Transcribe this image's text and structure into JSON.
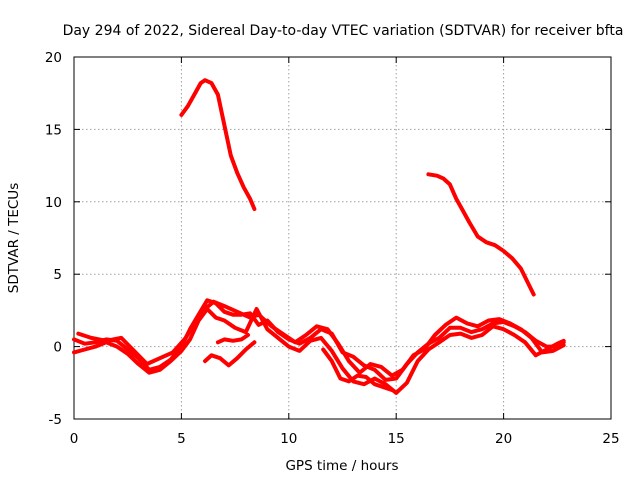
{
  "chart_data": {
    "type": "line",
    "title": "Day 294 of 2022, Sidereal Day-to-day VTEC variation (SDTVAR) for receiver bfta",
    "xlabel": "GPS time / hours",
    "ylabel": "SDTVAR / TECUs",
    "xlim": [
      0,
      25
    ],
    "ylim": [
      -5,
      20
    ],
    "xticks": [
      0,
      5,
      10,
      15,
      20,
      25
    ],
    "yticks": [
      -5,
      0,
      5,
      10,
      15,
      20
    ],
    "grid": true,
    "color": "#ff0000",
    "series": [
      {
        "name": "trace-1",
        "points": [
          [
            5.0,
            16.0
          ],
          [
            5.3,
            16.6
          ],
          [
            5.6,
            17.4
          ],
          [
            5.9,
            18.2
          ],
          [
            6.1,
            18.4
          ],
          [
            6.4,
            18.2
          ],
          [
            6.7,
            17.4
          ],
          [
            6.9,
            16.0
          ],
          [
            7.1,
            14.6
          ],
          [
            7.3,
            13.2
          ],
          [
            7.6,
            12.0
          ],
          [
            7.9,
            11.0
          ],
          [
            8.2,
            10.2
          ],
          [
            8.4,
            9.5
          ]
        ]
      },
      {
        "name": "trace-2",
        "points": [
          [
            16.5,
            11.9
          ],
          [
            16.9,
            11.8
          ],
          [
            17.2,
            11.6
          ],
          [
            17.5,
            11.2
          ],
          [
            17.8,
            10.2
          ],
          [
            18.1,
            9.4
          ],
          [
            18.4,
            8.6
          ],
          [
            18.8,
            7.6
          ],
          [
            19.2,
            7.2
          ],
          [
            19.6,
            7.0
          ],
          [
            20.0,
            6.6
          ],
          [
            20.4,
            6.1
          ],
          [
            20.8,
            5.4
          ],
          [
            21.1,
            4.5
          ],
          [
            21.4,
            3.6
          ]
        ]
      },
      {
        "name": "trace-3",
        "points": [
          [
            0.0,
            0.5
          ],
          [
            0.5,
            0.2
          ],
          [
            1.0,
            0.3
          ],
          [
            1.5,
            0.5
          ],
          [
            2.0,
            0.4
          ],
          [
            2.5,
            -0.2
          ],
          [
            3.0,
            -0.8
          ],
          [
            3.5,
            -1.6
          ],
          [
            4.0,
            -1.4
          ],
          [
            4.5,
            -0.9
          ],
          [
            5.0,
            0.0
          ],
          [
            5.4,
            1.2
          ],
          [
            5.8,
            2.2
          ],
          [
            6.2,
            3.2
          ],
          [
            6.6,
            3.0
          ],
          [
            7.0,
            2.4
          ],
          [
            7.4,
            2.2
          ],
          [
            7.8,
            2.2
          ],
          [
            8.2,
            2.3
          ],
          [
            8.6,
            1.5
          ],
          [
            9.0,
            1.8
          ],
          [
            9.5,
            1.0
          ],
          [
            10.0,
            0.5
          ],
          [
            10.5,
            0.2
          ],
          [
            11.0,
            0.6
          ],
          [
            11.5,
            1.2
          ],
          [
            12.0,
            0.9
          ],
          [
            12.5,
            -0.4
          ],
          [
            13.0,
            -0.7
          ],
          [
            13.5,
            -1.3
          ],
          [
            14.0,
            -1.6
          ],
          [
            14.5,
            -2.3
          ],
          [
            15.0,
            -2.2
          ],
          [
            15.5,
            -1.2
          ],
          [
            16.0,
            -0.4
          ],
          [
            16.5,
            0.2
          ],
          [
            17.0,
            0.6
          ],
          [
            17.5,
            1.3
          ],
          [
            18.0,
            1.3
          ],
          [
            18.5,
            1.0
          ],
          [
            19.0,
            1.2
          ],
          [
            19.5,
            1.6
          ],
          [
            20.0,
            1.7
          ],
          [
            20.5,
            1.4
          ],
          [
            21.0,
            1.0
          ],
          [
            21.5,
            0.4
          ],
          [
            22.0,
            0.0
          ],
          [
            22.5,
            0.0
          ],
          [
            22.8,
            0.3
          ]
        ]
      },
      {
        "name": "trace-4",
        "points": [
          [
            0.0,
            -0.4
          ],
          [
            0.5,
            -0.2
          ],
          [
            1.0,
            0.0
          ],
          [
            1.5,
            0.3
          ],
          [
            2.0,
            0.0
          ],
          [
            2.5,
            -0.5
          ],
          [
            3.0,
            -1.2
          ],
          [
            3.5,
            -1.8
          ],
          [
            4.0,
            -1.6
          ],
          [
            4.5,
            -1.0
          ],
          [
            5.0,
            -0.3
          ],
          [
            5.4,
            0.5
          ],
          [
            5.8,
            1.8
          ],
          [
            6.2,
            2.6
          ],
          [
            6.6,
            2.0
          ],
          [
            7.0,
            1.8
          ],
          [
            7.5,
            1.3
          ],
          [
            8.0,
            1.0
          ],
          [
            8.5,
            2.6
          ],
          [
            9.0,
            1.2
          ],
          [
            9.5,
            0.6
          ],
          [
            10.0,
            0.0
          ],
          [
            10.5,
            -0.3
          ],
          [
            11.0,
            0.4
          ],
          [
            11.5,
            0.6
          ],
          [
            12.0,
            -0.3
          ],
          [
            12.5,
            -1.5
          ],
          [
            13.0,
            -2.4
          ],
          [
            13.5,
            -2.6
          ],
          [
            14.0,
            -2.2
          ],
          [
            14.5,
            -2.6
          ],
          [
            15.0,
            -3.2
          ],
          [
            15.5,
            -2.5
          ],
          [
            16.0,
            -1.0
          ],
          [
            16.5,
            -0.2
          ],
          [
            17.0,
            0.3
          ],
          [
            17.5,
            0.8
          ],
          [
            18.0,
            0.9
          ],
          [
            18.5,
            0.6
          ],
          [
            19.0,
            0.8
          ],
          [
            19.5,
            1.4
          ],
          [
            20.0,
            1.2
          ],
          [
            20.5,
            0.8
          ],
          [
            21.0,
            0.3
          ],
          [
            21.5,
            -0.6
          ],
          [
            22.0,
            -0.2
          ],
          [
            22.5,
            0.2
          ],
          [
            22.8,
            0.4
          ]
        ]
      },
      {
        "name": "trace-5",
        "points": [
          [
            0.2,
            0.9
          ],
          [
            0.8,
            0.6
          ],
          [
            1.5,
            0.4
          ],
          [
            2.2,
            0.6
          ],
          [
            2.8,
            -0.3
          ],
          [
            3.4,
            -1.2
          ],
          [
            4.0,
            -0.8
          ],
          [
            4.6,
            -0.4
          ],
          [
            5.2,
            0.6
          ],
          [
            5.6,
            1.6
          ],
          [
            6.1,
            2.6
          ],
          [
            6.5,
            3.1
          ],
          [
            7.0,
            2.8
          ],
          [
            7.6,
            2.4
          ],
          [
            8.2,
            2.0
          ],
          [
            8.6,
            2.2
          ],
          [
            9.2,
            1.4
          ],
          [
            9.8,
            0.8
          ],
          [
            10.3,
            0.3
          ],
          [
            10.8,
            0.8
          ],
          [
            11.3,
            1.4
          ],
          [
            11.8,
            1.2
          ],
          [
            12.3,
            0.2
          ],
          [
            12.8,
            -1.0
          ],
          [
            13.3,
            -1.8
          ],
          [
            13.8,
            -1.2
          ],
          [
            14.3,
            -1.4
          ],
          [
            14.8,
            -2.0
          ],
          [
            15.3,
            -1.6
          ],
          [
            15.8,
            -0.6
          ],
          [
            16.3,
            -0.2
          ],
          [
            16.8,
            0.8
          ],
          [
            17.3,
            1.5
          ],
          [
            17.8,
            2.0
          ],
          [
            18.3,
            1.6
          ],
          [
            18.8,
            1.4
          ],
          [
            19.3,
            1.8
          ],
          [
            19.8,
            1.9
          ],
          [
            20.3,
            1.6
          ],
          [
            20.8,
            1.2
          ],
          [
            21.3,
            0.6
          ],
          [
            21.8,
            -0.4
          ],
          [
            22.3,
            -0.3
          ],
          [
            22.8,
            0.1
          ]
        ]
      },
      {
        "name": "trace-6",
        "points": [
          [
            6.1,
            -1.0
          ],
          [
            6.4,
            -0.6
          ],
          [
            6.8,
            -0.8
          ],
          [
            7.2,
            -1.3
          ],
          [
            7.6,
            -0.8
          ],
          [
            8.0,
            -0.2
          ],
          [
            8.4,
            0.3
          ]
        ]
      },
      {
        "name": "trace-7",
        "points": [
          [
            6.7,
            0.3
          ],
          [
            7.0,
            0.5
          ],
          [
            7.4,
            0.4
          ],
          [
            7.8,
            0.5
          ],
          [
            8.1,
            0.8
          ]
        ]
      },
      {
        "name": "trace-8",
        "points": [
          [
            11.6,
            -0.2
          ],
          [
            12.0,
            -1.0
          ],
          [
            12.4,
            -2.2
          ],
          [
            12.8,
            -2.4
          ],
          [
            13.2,
            -2.0
          ],
          [
            13.6,
            -2.1
          ],
          [
            14.0,
            -2.6
          ],
          [
            14.4,
            -2.8
          ],
          [
            14.8,
            -3.0
          ]
        ]
      }
    ]
  }
}
